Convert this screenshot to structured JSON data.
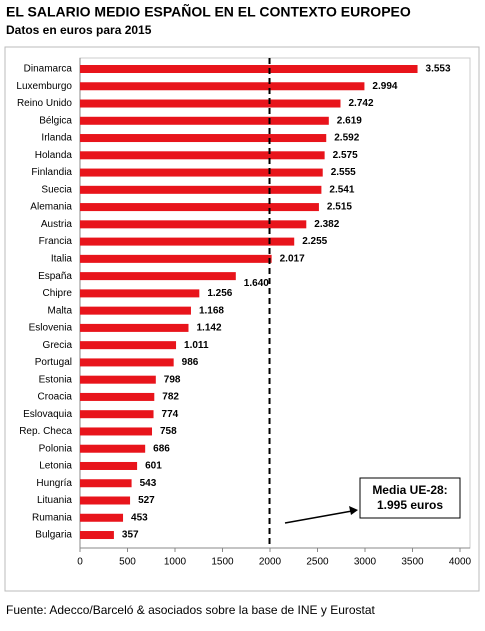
{
  "chart_data": {
    "type": "bar",
    "orientation": "horizontal",
    "title": "EL SALARIO MEDIO ESPAÑOL EN EL CONTEXTO EUROPEO",
    "subtitle": "Datos en euros para 2015",
    "source": "Fuente: Adecco/Barceló & asociados sobre la base de INE y Eurostat",
    "categories": [
      "Dinamarca",
      "Luxemburgo",
      "Reino Unido",
      "Bélgica",
      "Irlanda",
      "Holanda",
      "Finlandia",
      "Suecia",
      "Alemania",
      "Austria",
      "Francia",
      "Italia",
      "España",
      "Chipre",
      "Malta",
      "Eslovenia",
      "Grecia",
      "Portugal",
      "Estonia",
      "Croacia",
      "Eslovaquia",
      "Rep. Checa",
      "Polonia",
      "Letonia",
      "Hungría",
      "Lituania",
      "Rumania",
      "Bulgaria"
    ],
    "values": [
      3553,
      2994,
      2742,
      2619,
      2592,
      2575,
      2555,
      2541,
      2515,
      2382,
      2255,
      2017,
      1640,
      1256,
      1168,
      1142,
      1011,
      986,
      798,
      782,
      774,
      758,
      686,
      601,
      543,
      527,
      453,
      357
    ],
    "value_labels": [
      "3.553",
      "2.994",
      "2.742",
      "2.619",
      "2.592",
      "2.575",
      "2.555",
      "2.541",
      "2.515",
      "2.382",
      "2.255",
      "2.017",
      "1.640",
      "1.256",
      "1.168",
      "1.142",
      "1.011",
      "986",
      "798",
      "782",
      "774",
      "758",
      "686",
      "601",
      "543",
      "527",
      "453",
      "357"
    ],
    "color": "#e8141b",
    "xlim": [
      0,
      4000
    ],
    "xticks": [
      0,
      500,
      1000,
      1500,
      2000,
      2500,
      3000,
      3500,
      4000
    ],
    "reference_line": {
      "value": 1995,
      "label": [
        "Media UE-28:",
        "1.995 euros"
      ]
    }
  }
}
